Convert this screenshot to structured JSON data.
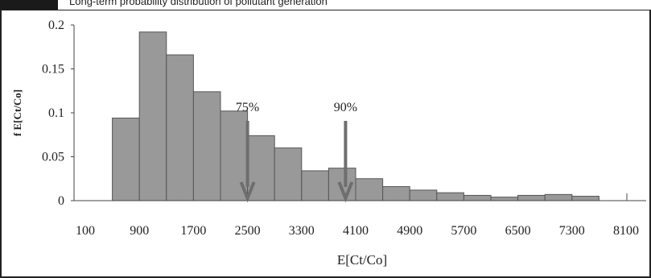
{
  "figure": {
    "tag": "",
    "caption": "Long-term probability distribution of pollutant generation"
  },
  "chart_data": {
    "type": "bar",
    "title": "",
    "xlabel": "E[Ct/Co]",
    "ylabel": "f E[Ct/Co]",
    "ylim": [
      0,
      0.2
    ],
    "yticks": [
      "0",
      "0.05",
      "0.1",
      "0.15",
      "0.2"
    ],
    "xticks": [
      "100",
      "900",
      "1700",
      "2500",
      "3300",
      "4100",
      "4900",
      "5700",
      "6500",
      "7300",
      "8100"
    ],
    "bin_width": 400,
    "bin_starts": [
      500,
      900,
      1300,
      1700,
      2100,
      2500,
      2900,
      3300,
      3700,
      4100,
      4500,
      4900,
      5300,
      5700,
      6100,
      6500,
      6900,
      7300
    ],
    "values": [
      0.094,
      0.192,
      0.166,
      0.124,
      0.102,
      0.074,
      0.06,
      0.034,
      0.037,
      0.025,
      0.016,
      0.012,
      0.009,
      0.006,
      0.004,
      0.006,
      0.007,
      0.005
    ],
    "grid": false,
    "annotations": [
      {
        "label": "75%",
        "x": 2500
      },
      {
        "label": "90%",
        "x": 3950
      }
    ],
    "colors": {
      "bar": "#999999",
      "bar_edge": "#555555",
      "arrow": "#6e6e6e"
    }
  }
}
